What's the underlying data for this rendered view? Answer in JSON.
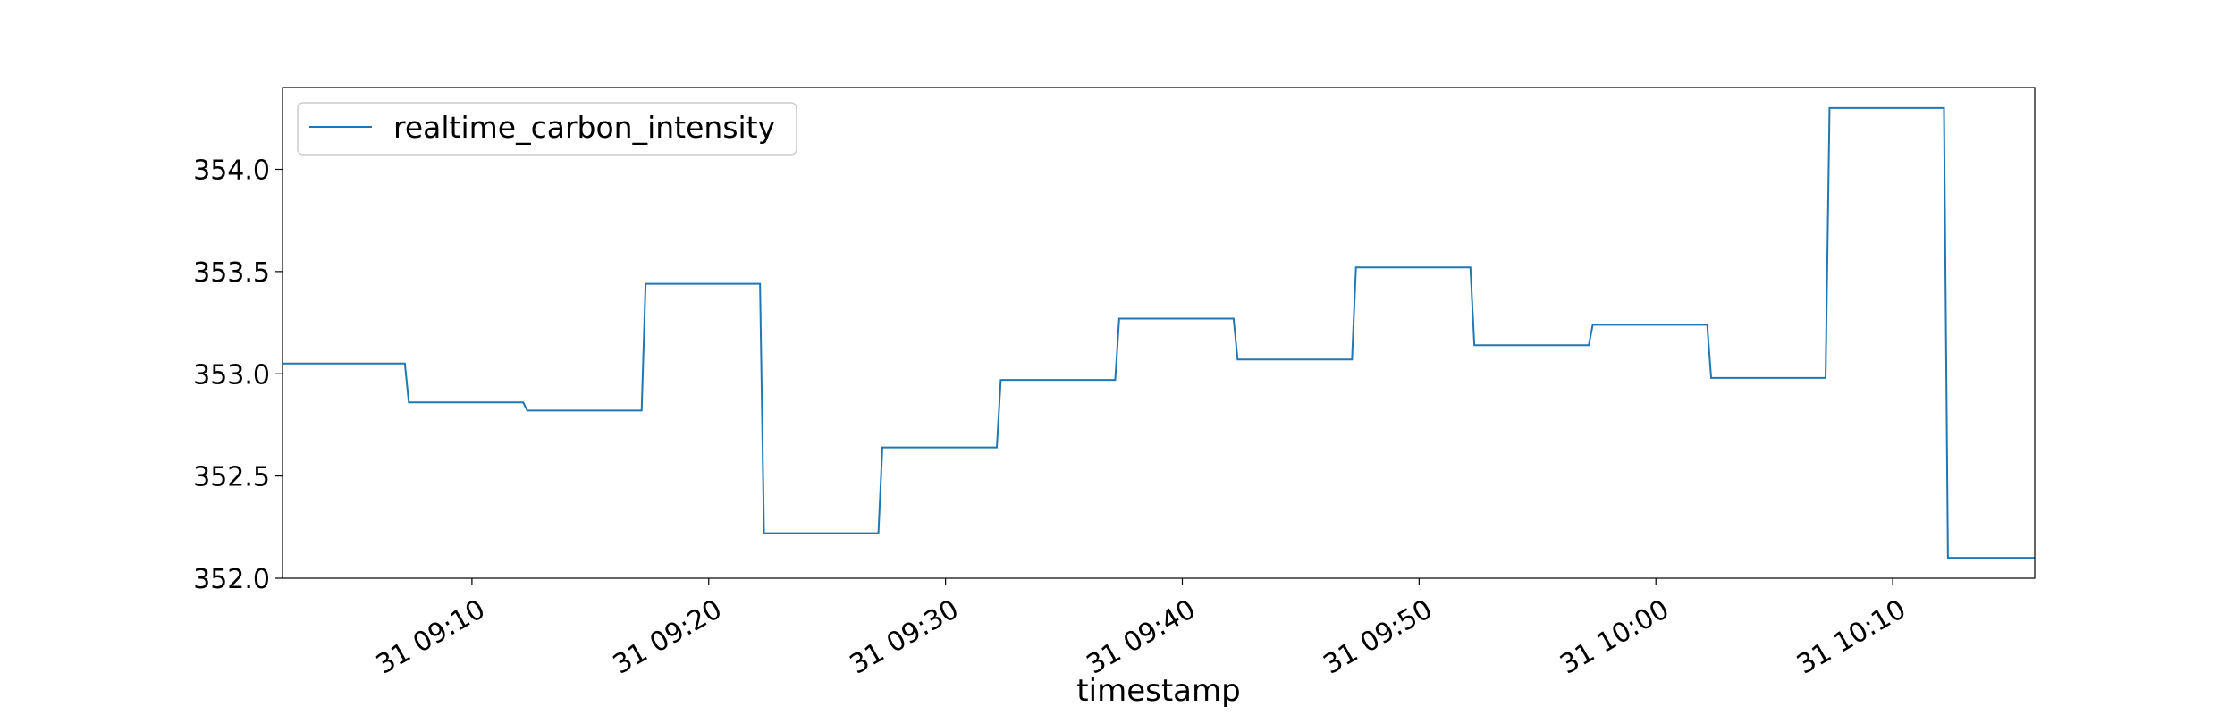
{
  "chart_data": {
    "type": "line",
    "title": "",
    "xlabel": "timestamp",
    "ylabel": "",
    "legend": {
      "position": "top-left",
      "entries": [
        "realtime_carbon_intensity"
      ]
    },
    "grid": false,
    "xlim": [
      "31 09:02:00",
      "31 10:16:00"
    ],
    "ylim": [
      352.0,
      354.4
    ],
    "x_ticks": [
      "31 09:10",
      "31 09:20",
      "31 09:30",
      "31 09:40",
      "31 09:50",
      "31 10:00",
      "31 10:10"
    ],
    "y_ticks": [
      "352.0",
      "352.5",
      "353.0",
      "353.5",
      "354.0"
    ],
    "series": [
      {
        "name": "realtime_carbon_intensity",
        "color": "#1f77b4",
        "x": [
          "31 09:02:00",
          "31 09:07:10",
          "31 09:07:20",
          "31 09:12:10",
          "31 09:12:20",
          "31 09:17:10",
          "31 09:17:20",
          "31 09:22:10",
          "31 09:22:20",
          "31 09:27:10",
          "31 09:27:20",
          "31 09:32:10",
          "31 09:32:20",
          "31 09:37:10",
          "31 09:37:20",
          "31 09:42:10",
          "31 09:42:20",
          "31 09:47:10",
          "31 09:47:20",
          "31 09:52:10",
          "31 09:52:20",
          "31 09:57:10",
          "31 09:57:20",
          "31 10:02:10",
          "31 10:02:20",
          "31 10:07:10",
          "31 10:07:20",
          "31 10:12:10",
          "31 10:12:20",
          "31 10:16:00"
        ],
        "values": [
          353.05,
          353.05,
          352.86,
          352.86,
          352.82,
          352.82,
          353.44,
          353.44,
          352.22,
          352.22,
          352.64,
          352.64,
          352.97,
          352.97,
          353.27,
          353.27,
          353.07,
          353.07,
          353.52,
          353.52,
          353.14,
          353.14,
          353.24,
          353.24,
          352.98,
          352.98,
          354.3,
          354.3,
          352.1,
          352.1
        ]
      }
    ]
  }
}
